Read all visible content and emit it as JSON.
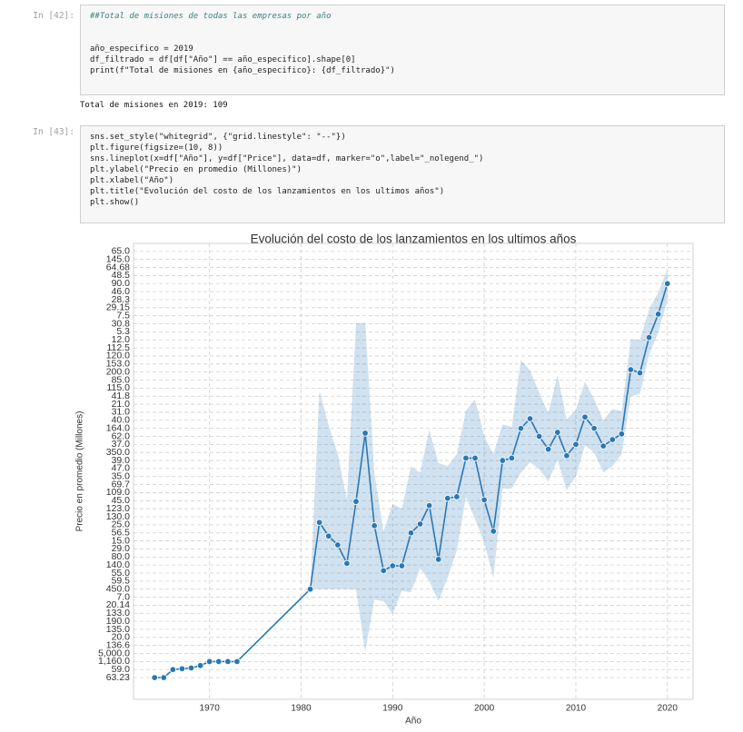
{
  "cells": [
    {
      "prompt": "In [42]:",
      "comment": "##Total de misiones de todas las empresas por año",
      "code": [
        "año_especifico = 2019",
        "df_filtrado = df[df[\"Año\"] == año_especifico].shape[0]",
        "print(f\"Total de misiones en {año_especifico}: {df_filtrado}\")"
      ],
      "output": "Total de misiones en 2019: 109"
    },
    {
      "prompt": "In [43]:",
      "code": [
        "sns.set_style(\"whitegrid\", {\"grid.linestyle\": \"--\"})",
        "plt.figure(figsize=(10, 8))",
        "sns.lineplot(x=df[\"Año\"], y=df[\"Price\"], data=df, marker=\"o\",label=\"_nolegend_\")",
        "plt.ylabel(\"Precio en promedio (Millones)\")",
        "plt.xlabel(\"Año\")",
        "plt.title(\"Evolución del costo de los lanzamientos en los ultimos años\")",
        "plt.show()"
      ]
    }
  ],
  "chart_data": {
    "type": "line",
    "title": "Evolución del costo de los lanzamientos en los ultimos años",
    "x_label": "Año",
    "y_label": "Precio en promedio (Millones)",
    "grid": true,
    "x": [
      1964,
      1965,
      1966,
      1967,
      1968,
      1969,
      1970,
      1971,
      1972,
      1973,
      1981,
      1982,
      1983,
      1984,
      1985,
      1986,
      1987,
      1988,
      1989,
      1990,
      1991,
      1992,
      1993,
      1994,
      1995,
      1996,
      1997,
      1998,
      1999,
      2000,
      2001,
      2002,
      2003,
      2004,
      2005,
      2006,
      2007,
      2008,
      2009,
      2010,
      2011,
      2012,
      2013,
      2014,
      2015,
      2016,
      2017,
      2018,
      2019,
      2020
    ],
    "series": [
      {
        "color": "#2a78b5",
        "values": [
          0,
          0,
          1,
          1.1,
          1.2,
          1.5,
          2,
          2,
          2,
          2,
          11,
          19.3,
          17.6,
          16.5,
          14.2,
          21.9,
          30.4,
          18.9,
          13.3,
          13.9,
          13.9,
          18,
          19.1,
          21.4,
          14.7,
          22.3,
          22.5,
          27.3,
          27.3,
          22.1,
          18.2,
          27,
          27.3,
          31,
          32.2,
          30,
          28.4,
          30.5,
          27.6,
          29,
          32.4,
          31,
          28.8,
          29.6,
          30.3,
          38.3,
          37.9,
          42.3,
          45.2,
          49
        ],
        "ci_upper": [
          0,
          0,
          1,
          1.1,
          1.2,
          1.5,
          2,
          2,
          2,
          2,
          11,
          35.7,
          31.4,
          27.8,
          22.1,
          44.1,
          44.1,
          25.5,
          18.2,
          21.6,
          21,
          26.3,
          25.5,
          30.8,
          26.7,
          26.3,
          27.8,
          33.2,
          34.6,
          30,
          27.8,
          31.5,
          31.2,
          39.5,
          38.2,
          35.4,
          32.9,
          37.6,
          32.1,
          33.3,
          36.8,
          34.6,
          32,
          33.4,
          33.1,
          42.1,
          42,
          45.8,
          47.9,
          50.8
        ],
        "ci_lower": [
          0,
          0,
          1,
          1.1,
          1.2,
          1.5,
          2,
          2,
          2,
          2,
          11,
          11,
          11,
          11,
          11,
          11,
          3.2,
          9.7,
          9.5,
          7.9,
          10.8,
          10.6,
          13.6,
          12,
          9.5,
          12.4,
          15.8,
          22.5,
          19.7,
          16.8,
          12.4,
          23.5,
          23.5,
          25.5,
          26.8,
          25.9,
          24.4,
          27.1,
          23.3,
          25,
          28.9,
          28,
          25.5,
          26.3,
          27.8,
          35,
          35.3,
          40.2,
          42.9,
          47
        ]
      }
    ],
    "xlim": [
      1961.7,
      2022.8
    ],
    "xticks": [
      1970,
      1980,
      1990,
      2000,
      2010,
      2020
    ],
    "ylim": [
      -2.7,
      54
    ],
    "yticks": [
      {
        "value": 0,
        "label": "63.23"
      },
      {
        "value": 1,
        "label": "59.0"
      },
      {
        "value": 2,
        "label": "1,160.0"
      },
      {
        "value": 3,
        "label": "5,000.0"
      },
      {
        "value": 4,
        "label": "136.6"
      },
      {
        "value": 5,
        "label": "20.0"
      },
      {
        "value": 6,
        "label": "135.0"
      },
      {
        "value": 7,
        "label": "190.0"
      },
      {
        "value": 8,
        "label": "133.0"
      },
      {
        "value": 9,
        "label": "20.14"
      },
      {
        "value": 10,
        "label": "7.0"
      },
      {
        "value": 11,
        "label": "450.0"
      },
      {
        "value": 12,
        "label": "59.5"
      },
      {
        "value": 13,
        "label": "55.0"
      },
      {
        "value": 14,
        "label": "140.0"
      },
      {
        "value": 15,
        "label": "80.0"
      },
      {
        "value": 16,
        "label": "29.0"
      },
      {
        "value": 17,
        "label": "15.0"
      },
      {
        "value": 18,
        "label": "56.5"
      },
      {
        "value": 19,
        "label": "25.0"
      },
      {
        "value": 20,
        "label": "130.0"
      },
      {
        "value": 21,
        "label": "123.0"
      },
      {
        "value": 22,
        "label": "45.0"
      },
      {
        "value": 23,
        "label": "109.0"
      },
      {
        "value": 24,
        "label": "69.7"
      },
      {
        "value": 25,
        "label": "35.0"
      },
      {
        "value": 26,
        "label": "47.0"
      },
      {
        "value": 27,
        "label": "39.0"
      },
      {
        "value": 28,
        "label": "350.0"
      },
      {
        "value": 29,
        "label": "37.0"
      },
      {
        "value": 30,
        "label": "62.0"
      },
      {
        "value": 31,
        "label": "164.0"
      },
      {
        "value": 32,
        "label": "40.0"
      },
      {
        "value": 33,
        "label": "31.0"
      },
      {
        "value": 34,
        "label": "21.0"
      },
      {
        "value": 35,
        "label": "41.8"
      },
      {
        "value": 36,
        "label": "115.0"
      },
      {
        "value": 37,
        "label": "85.0"
      },
      {
        "value": 38,
        "label": "200.0"
      },
      {
        "value": 39,
        "label": "153.0"
      },
      {
        "value": 40,
        "label": "120.0"
      },
      {
        "value": 41,
        "label": "112.5"
      },
      {
        "value": 42,
        "label": "12.0"
      },
      {
        "value": 43,
        "label": "5.3"
      },
      {
        "value": 44,
        "label": "30.8"
      },
      {
        "value": 45,
        "label": "7.5"
      },
      {
        "value": 46,
        "label": "29.15"
      },
      {
        "value": 47,
        "label": "28.3"
      },
      {
        "value": 48,
        "label": "46.0"
      },
      {
        "value": 49,
        "label": "90.0"
      },
      {
        "value": 50,
        "label": "48.5"
      },
      {
        "value": 51,
        "label": "64.68"
      },
      {
        "value": 52,
        "label": "145.0"
      },
      {
        "value": 53,
        "label": "65.0"
      }
    ]
  }
}
